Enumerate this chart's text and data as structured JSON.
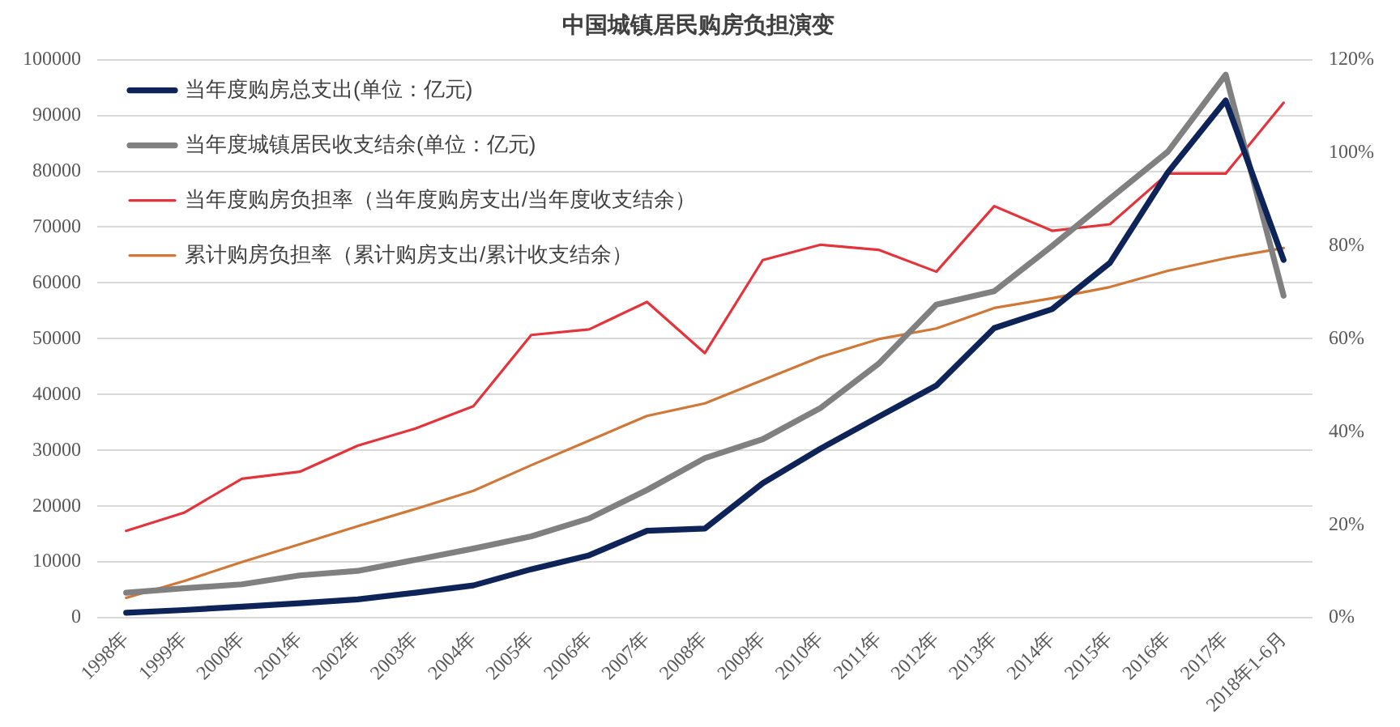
{
  "chart_data": {
    "type": "line",
    "title": "中国城镇居民购房负担演变",
    "categories": [
      "1998年",
      "1999年",
      "2000年",
      "2001年",
      "2002年",
      "2003年",
      "2004年",
      "2005年",
      "2006年",
      "2007年",
      "2008年",
      "2009年",
      "2010年",
      "2011年",
      "2012年",
      "2013年",
      "2014年",
      "2015年",
      "2016年",
      "2017年",
      "2018年1-6月"
    ],
    "series": [
      {
        "name": "当年度购房总支出(单位：亿元)",
        "color": "#0e2358",
        "values": [
          900,
          1400,
          2000,
          2600,
          3300,
          4500,
          5800,
          8700,
          11200,
          15600,
          16000,
          24100,
          30300,
          36000,
          41600,
          51900,
          55300,
          63600,
          79800,
          92700,
          64100
        ]
      },
      {
        "name": "当年度城镇居民收支结余(单位：亿元)",
        "color": "#808080",
        "values": [
          4500,
          5300,
          6000,
          7600,
          8400,
          10400,
          12400,
          14600,
          17800,
          22900,
          28600,
          32000,
          37600,
          45500,
          56100,
          58500,
          66600,
          75100,
          83500,
          97300,
          57700
        ]
      },
      {
        "name": "当年度购房负担率（当年度购房支出/当年度收支结余）",
        "color": "#e3343c",
        "axis": "y2",
        "values": [
          18.7,
          22.6,
          29.9,
          31.4,
          37.0,
          40.7,
          45.5,
          60.8,
          62.0,
          67.9,
          56.9,
          76.9,
          80.2,
          79.1,
          74.4,
          88.5,
          83.2,
          84.6,
          95.5,
          95.5,
          110.7
        ]
      },
      {
        "name": "累计购房负担率（累计购房支出/累计收支结余）",
        "color": "#cf7838",
        "axis": "y2",
        "values": [
          4.3,
          7.9,
          12.0,
          15.8,
          19.7,
          23.4,
          27.3,
          32.8,
          38.1,
          43.4,
          46.1,
          51.1,
          56.1,
          59.9,
          62.2,
          66.6,
          68.7,
          71.1,
          74.6,
          77.3,
          79.5
        ]
      }
    ],
    "ylim": [
      0,
      100000
    ],
    "yticks": [
      0,
      10000,
      20000,
      30000,
      40000,
      50000,
      60000,
      70000,
      80000,
      90000,
      100000
    ],
    "y2lim": [
      0,
      120
    ],
    "y2ticks": [
      {
        "value": 0,
        "label": "0%"
      },
      {
        "value": 20,
        "label": "20%"
      },
      {
        "value": 40,
        "label": "40%"
      },
      {
        "value": 60,
        "label": "60%"
      },
      {
        "value": 80,
        "label": "80%"
      },
      {
        "value": 100,
        "label": "100%"
      },
      {
        "value": 120,
        "label": "120%"
      }
    ],
    "grid": "y",
    "legend": "top left",
    "marker": "none"
  }
}
